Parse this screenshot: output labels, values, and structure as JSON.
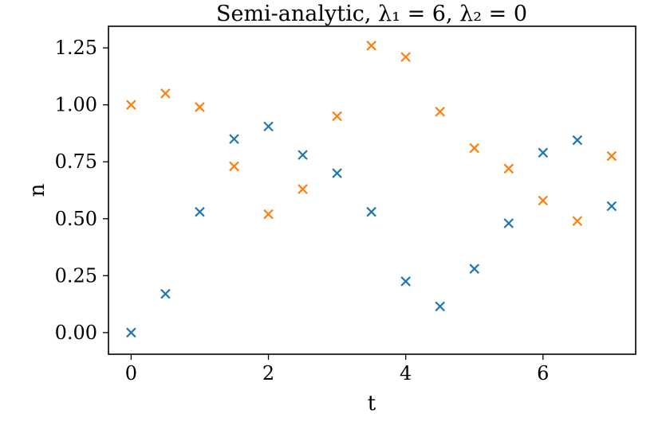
{
  "chart_data": {
    "type": "scatter",
    "title": "Semi-analytic, λ₁ = 6, λ₂ = 0",
    "xlabel": "t",
    "ylabel": "n",
    "xlim": [
      -0.33,
      7.35
    ],
    "ylim": [
      -0.095,
      1.345
    ],
    "xticks": [
      0,
      2,
      4,
      6
    ],
    "xtick_labels": [
      "0",
      "2",
      "4",
      "6"
    ],
    "yticks": [
      0.0,
      0.25,
      0.5,
      0.75,
      1.0,
      1.25
    ],
    "ytick_labels": [
      "0.00",
      "0.25",
      "0.50",
      "0.75",
      "1.00",
      "1.25"
    ],
    "grid": false,
    "legend": "none",
    "marker": "x",
    "series": [
      {
        "color": "#1f77b4",
        "x": [
          0,
          0.5,
          1,
          1.5,
          2,
          2.5,
          3,
          3.5,
          4,
          4.5,
          5,
          5.5,
          6,
          6.5,
          7
        ],
        "y": [
          0.0,
          0.17,
          0.53,
          0.85,
          0.905,
          0.78,
          0.7,
          0.53,
          0.225,
          0.115,
          0.28,
          0.48,
          0.79,
          0.845,
          0.555
        ]
      },
      {
        "color": "#ff7f0e",
        "x": [
          0,
          0.5,
          1,
          1.5,
          2,
          2.5,
          3,
          3.5,
          4,
          4.5,
          5,
          5.5,
          6,
          6.5,
          7
        ],
        "y": [
          1.0,
          1.05,
          0.99,
          0.73,
          0.52,
          0.63,
          0.95,
          1.26,
          1.21,
          0.97,
          0.81,
          0.72,
          0.58,
          0.49,
          0.775
        ]
      }
    ]
  }
}
